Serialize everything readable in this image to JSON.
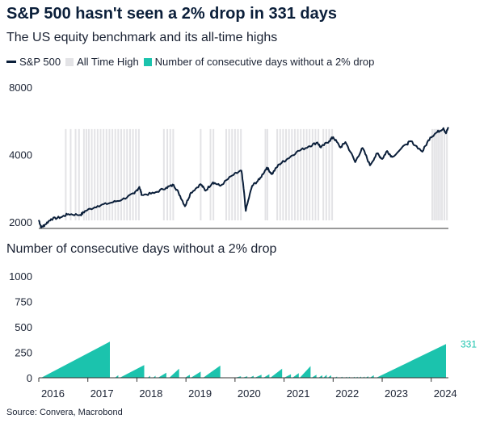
{
  "header": {
    "title": "S&P 500 hasn't seen a 2% drop in 331 days",
    "subtitle": "The US equity benchmark and its all-time highs"
  },
  "legend": {
    "sp500": "S&P 500",
    "ath": "All Time High",
    "streak": "Number of consecutive days without a 2% drop"
  },
  "colors": {
    "line": "#0b1f3a",
    "ath": "#e3e3e6",
    "streak": "#1bc3ad",
    "axis": "#333333"
  },
  "source": "Source: Convera, Macrobond",
  "chart_data": [
    {
      "type": "line",
      "title": "",
      "ylabel": "",
      "y_ticks": [
        2000,
        4000,
        8000
      ],
      "log_scale": true,
      "ylim": [
        2000,
        8000
      ],
      "xlim": [
        2016.0,
        2024.35
      ],
      "series": [
        {
          "name": "S&P 500",
          "points": [
            [
              2016.0,
              2040
            ],
            [
              2016.05,
              1890
            ],
            [
              2016.12,
              1940
            ],
            [
              2016.25,
              2060
            ],
            [
              2016.45,
              2100
            ],
            [
              2016.6,
              2170
            ],
            [
              2016.85,
              2150
            ],
            [
              2016.95,
              2240
            ],
            [
              2017.2,
              2360
            ],
            [
              2017.45,
              2430
            ],
            [
              2017.7,
              2520
            ],
            [
              2017.95,
              2680
            ],
            [
              2018.05,
              2870
            ],
            [
              2018.1,
              2640
            ],
            [
              2018.35,
              2690
            ],
            [
              2018.6,
              2850
            ],
            [
              2018.75,
              2925
            ],
            [
              2018.85,
              2700
            ],
            [
              2018.98,
              2350
            ],
            [
              2019.1,
              2700
            ],
            [
              2019.3,
              2950
            ],
            [
              2019.4,
              2760
            ],
            [
              2019.55,
              3010
            ],
            [
              2019.7,
              2900
            ],
            [
              2019.95,
              3230
            ],
            [
              2020.13,
              3390
            ],
            [
              2020.22,
              2240
            ],
            [
              2020.35,
              2900
            ],
            [
              2020.5,
              3100
            ],
            [
              2020.65,
              3500
            ],
            [
              2020.75,
              3270
            ],
            [
              2020.9,
              3620
            ],
            [
              2021.05,
              3800
            ],
            [
              2021.25,
              4100
            ],
            [
              2021.5,
              4350
            ],
            [
              2021.68,
              4530
            ],
            [
              2021.75,
              4300
            ],
            [
              2021.92,
              4600
            ],
            [
              2022.0,
              4790
            ],
            [
              2022.15,
              4300
            ],
            [
              2022.25,
              4550
            ],
            [
              2022.45,
              3700
            ],
            [
              2022.6,
              4280
            ],
            [
              2022.75,
              3580
            ],
            [
              2022.9,
              4050
            ],
            [
              2023.0,
              3820
            ],
            [
              2023.1,
              4150
            ],
            [
              2023.2,
              3900
            ],
            [
              2023.5,
              4450
            ],
            [
              2023.58,
              4590
            ],
            [
              2023.82,
              4120
            ],
            [
              2023.98,
              4770
            ],
            [
              2024.1,
              5000
            ],
            [
              2024.25,
              5250
            ],
            [
              2024.3,
              4970
            ],
            [
              2024.35,
              5300
            ]
          ]
        }
      ],
      "all_time_highs": [
        2016.55,
        2016.65,
        2016.75,
        2016.82,
        2016.92,
        2016.97,
        2017.02,
        2017.08,
        2017.14,
        2017.2,
        2017.26,
        2017.32,
        2017.38,
        2017.44,
        2017.5,
        2017.56,
        2017.62,
        2017.68,
        2017.74,
        2017.8,
        2017.86,
        2017.92,
        2017.98,
        2018.04,
        2018.55,
        2018.62,
        2018.68,
        2018.74,
        2019.3,
        2019.5,
        2019.56,
        2019.82,
        2019.88,
        2019.94,
        2020.0,
        2020.06,
        2020.12,
        2020.62,
        2020.66,
        2020.86,
        2020.92,
        2020.98,
        2021.04,
        2021.1,
        2021.16,
        2021.22,
        2021.28,
        2021.34,
        2021.4,
        2021.46,
        2021.52,
        2021.58,
        2021.64,
        2021.7,
        2021.8,
        2021.86,
        2021.92,
        2021.98,
        2024.02,
        2024.06,
        2024.1,
        2024.14,
        2024.18,
        2024.22,
        2024.27,
        2024.32
      ]
    },
    {
      "type": "area",
      "title": "Number of consecutive days without a 2% drop",
      "y_ticks": [
        0,
        250,
        500,
        750,
        1000
      ],
      "ylim": [
        0,
        1000
      ],
      "x_ticks": [
        "2016",
        "2017",
        "2018",
        "2019",
        "2020",
        "2021",
        "2022",
        "2023",
        "2024"
      ],
      "xlim": [
        2016.0,
        2024.35
      ],
      "streaks": [
        {
          "start": 2016.05,
          "end": 2017.45,
          "peak": 355
        },
        {
          "start": 2017.55,
          "end": 2017.62,
          "peak": 25
        },
        {
          "start": 2017.65,
          "end": 2018.15,
          "peak": 125
        },
        {
          "start": 2018.22,
          "end": 2018.27,
          "peak": 20
        },
        {
          "start": 2018.33,
          "end": 2018.38,
          "peak": 20
        },
        {
          "start": 2018.43,
          "end": 2018.6,
          "peak": 50
        },
        {
          "start": 2018.66,
          "end": 2018.86,
          "peak": 90
        },
        {
          "start": 2018.98,
          "end": 2019.08,
          "peak": 30
        },
        {
          "start": 2019.1,
          "end": 2019.3,
          "peak": 60
        },
        {
          "start": 2019.35,
          "end": 2019.7,
          "peak": 120
        },
        {
          "start": 2020.0,
          "end": 2020.12,
          "peak": 15
        },
        {
          "start": 2020.15,
          "end": 2020.25,
          "peak": 15
        },
        {
          "start": 2020.3,
          "end": 2020.38,
          "peak": 20
        },
        {
          "start": 2020.4,
          "end": 2020.54,
          "peak": 30
        },
        {
          "start": 2020.58,
          "end": 2020.7,
          "peak": 35
        },
        {
          "start": 2020.72,
          "end": 2020.96,
          "peak": 90
        },
        {
          "start": 2021.0,
          "end": 2021.14,
          "peak": 35
        },
        {
          "start": 2021.17,
          "end": 2021.3,
          "peak": 45
        },
        {
          "start": 2021.32,
          "end": 2021.54,
          "peak": 115
        },
        {
          "start": 2021.56,
          "end": 2021.66,
          "peak": 30
        },
        {
          "start": 2021.7,
          "end": 2021.78,
          "peak": 25
        },
        {
          "start": 2021.8,
          "end": 2021.87,
          "peak": 30
        },
        {
          "start": 2021.89,
          "end": 2021.96,
          "peak": 25
        },
        {
          "start": 2022.03,
          "end": 2022.08,
          "peak": 12
        },
        {
          "start": 2022.14,
          "end": 2022.19,
          "peak": 10
        },
        {
          "start": 2022.24,
          "end": 2022.28,
          "peak": 10
        },
        {
          "start": 2022.3,
          "end": 2022.34,
          "peak": 10
        },
        {
          "start": 2022.4,
          "end": 2022.44,
          "peak": 10
        },
        {
          "start": 2022.46,
          "end": 2022.5,
          "peak": 10
        },
        {
          "start": 2022.53,
          "end": 2022.57,
          "peak": 12
        },
        {
          "start": 2022.6,
          "end": 2022.64,
          "peak": 12
        },
        {
          "start": 2022.66,
          "end": 2022.72,
          "peak": 15
        },
        {
          "start": 2022.75,
          "end": 2022.83,
          "peak": 25
        },
        {
          "start": 2022.88,
          "end": 2024.3,
          "peak": 331
        }
      ],
      "current_label": "331"
    }
  ]
}
